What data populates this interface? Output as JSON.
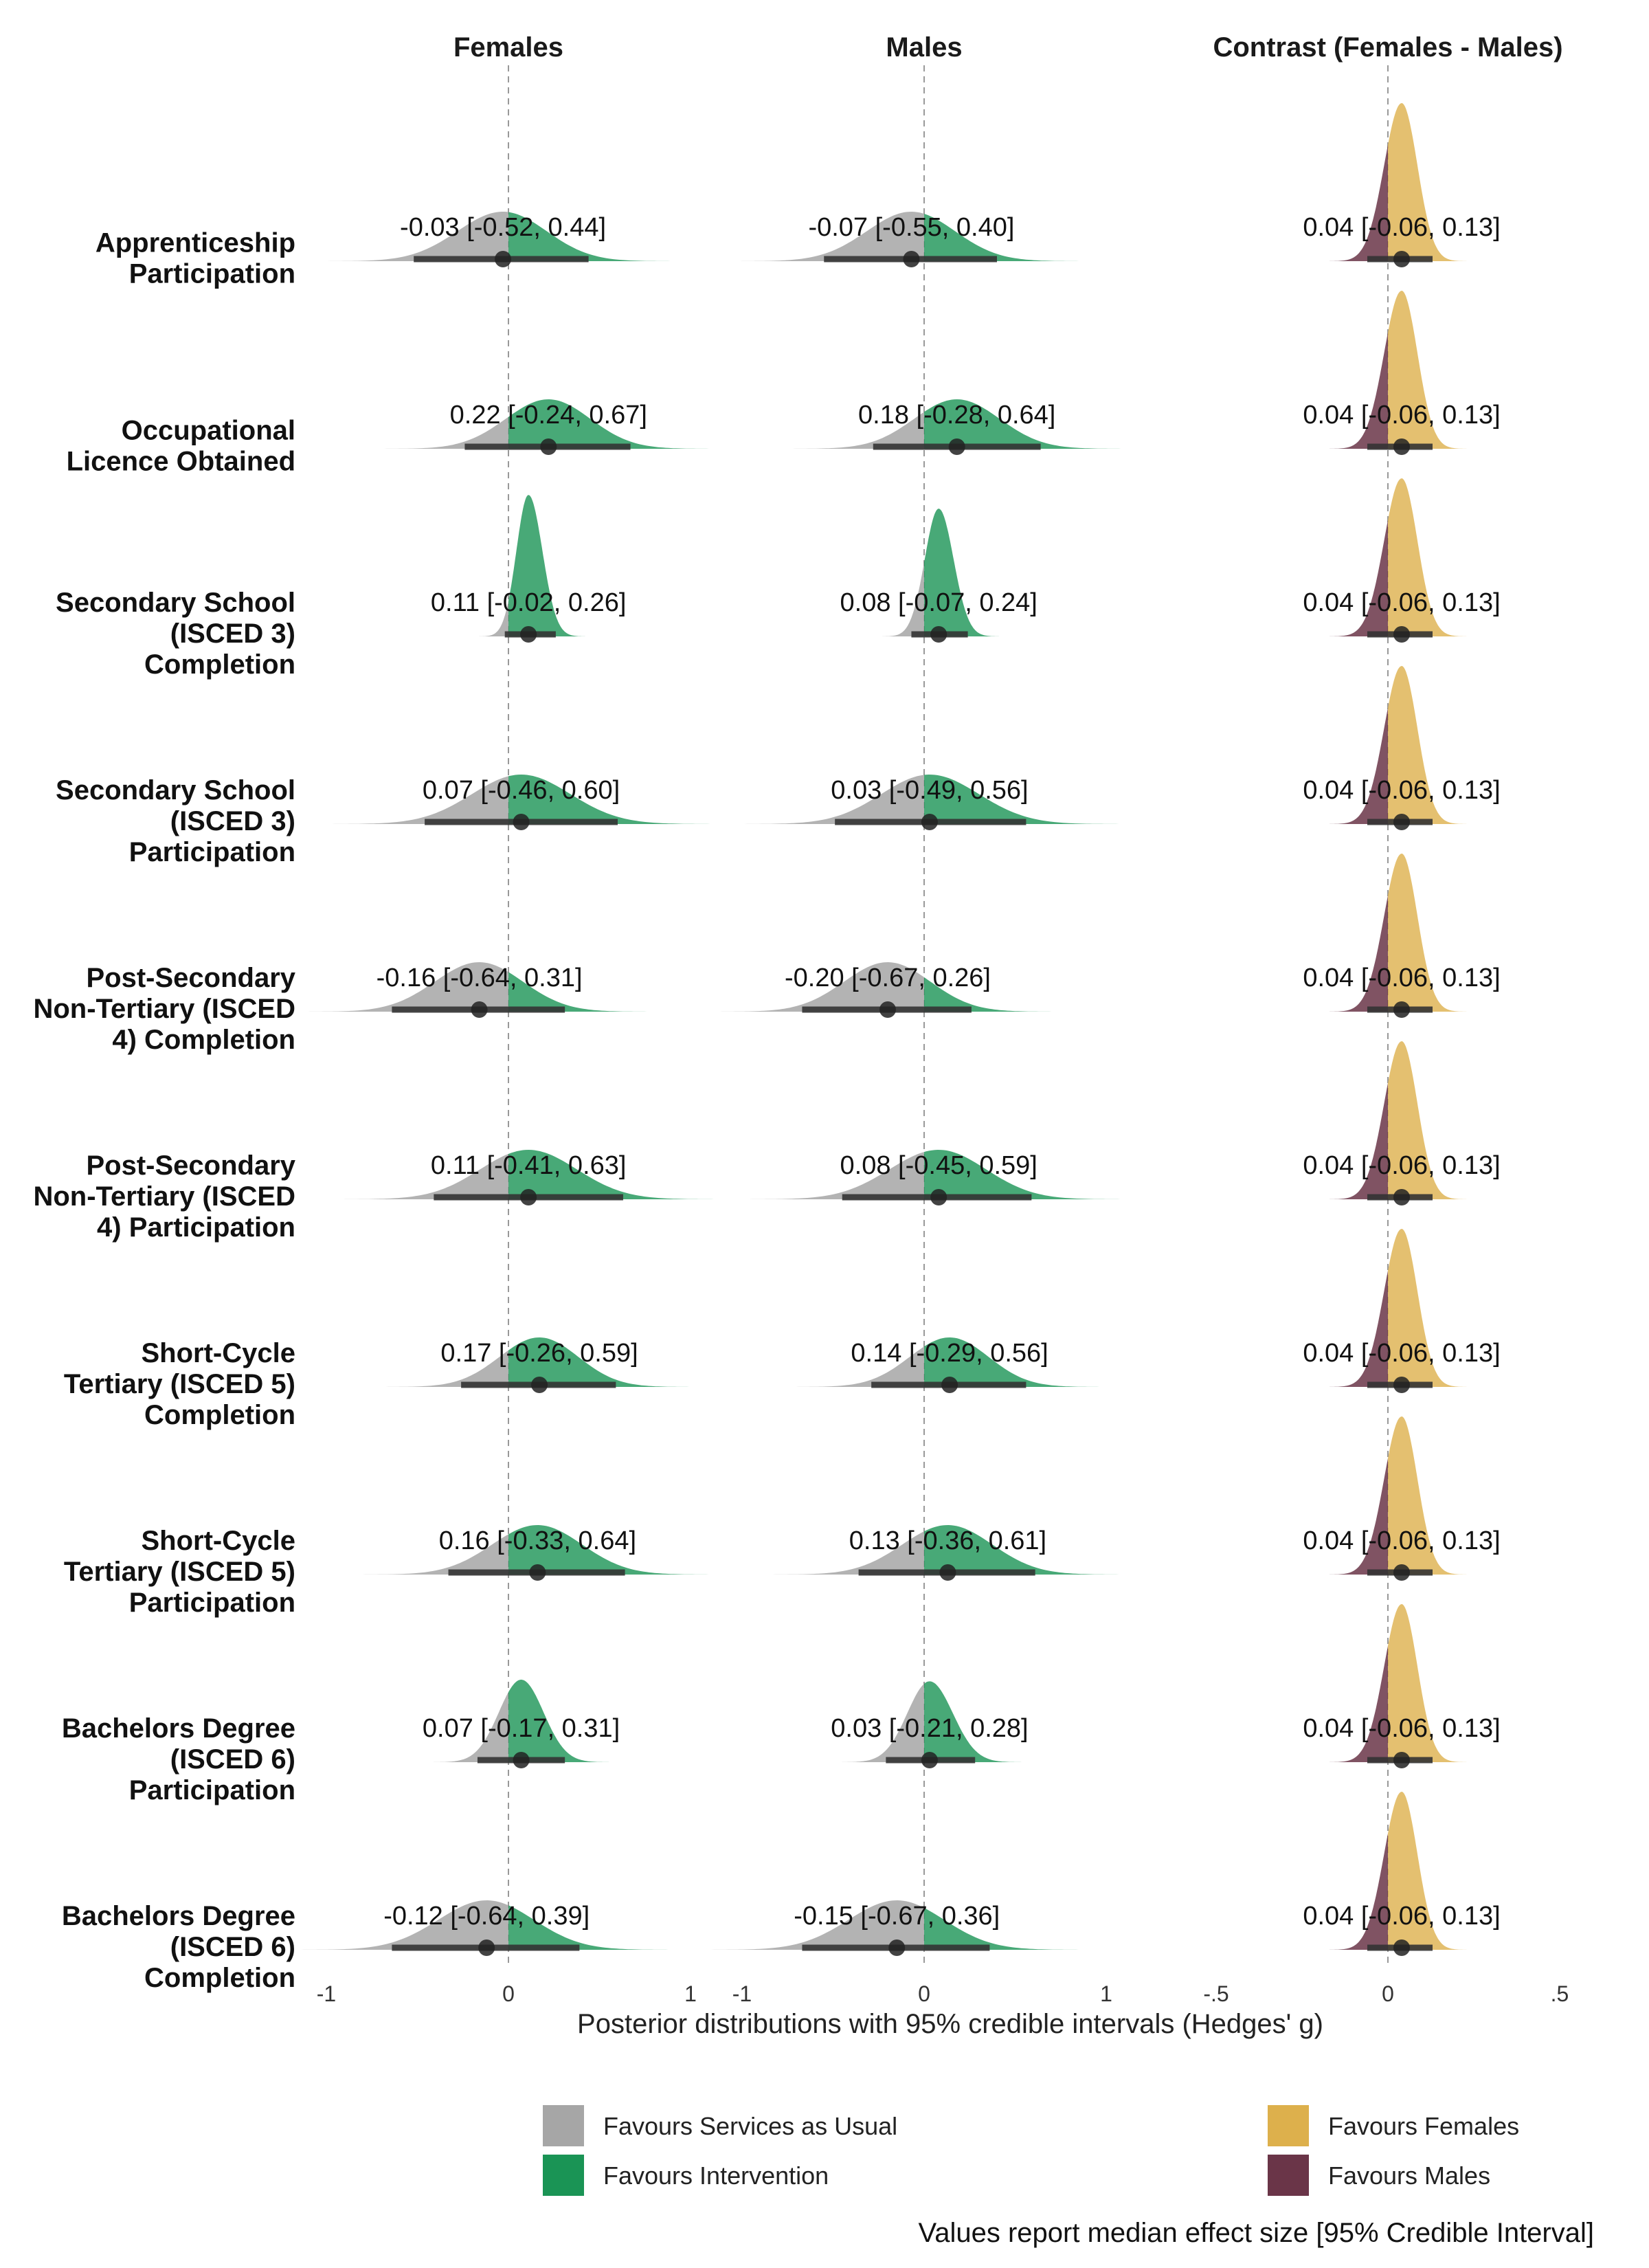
{
  "chart_data": {
    "type": "density-interval",
    "xlabel": "Posterior distributions with 95% credible intervals (Hedges' g)",
    "caption": "Values report median effect size [95% Credible Interval]",
    "panels": [
      {
        "title": "Females",
        "xlim": [
          -1,
          1
        ],
        "ticks": [
          -1,
          0,
          1
        ],
        "tick_labels": [
          "-1",
          "0",
          "1"
        ],
        "left_fill": "services",
        "right_fill": "intervention"
      },
      {
        "title": "Males",
        "xlim": [
          -1,
          1
        ],
        "ticks": [
          -1,
          0,
          1
        ],
        "tick_labels": [
          "-1",
          "0",
          "1"
        ],
        "left_fill": "services",
        "right_fill": "intervention"
      },
      {
        "title": "Contrast (Females - Males)",
        "xlim": [
          -0.5,
          0.5
        ],
        "ticks": [
          -0.5,
          0,
          0.5
        ],
        "tick_labels": [
          "-.5",
          "0",
          ".5"
        ],
        "left_fill": "males",
        "right_fill": "females"
      }
    ],
    "rows": [
      {
        "label": [
          "Apprenticeship",
          "Participation"
        ],
        "females": {
          "median": -0.03,
          "lower": -0.52,
          "upper": 0.44,
          "text": "-0.03 [-0.52, 0.44]"
        },
        "males": {
          "median": -0.07,
          "lower": -0.55,
          "upper": 0.4,
          "text": "-0.07 [-0.55, 0.40]"
        },
        "contrast": {
          "median": 0.04,
          "lower": -0.06,
          "upper": 0.13,
          "text": "0.04 [-0.06, 0.13]"
        }
      },
      {
        "label": [
          "Occupational",
          "Licence Obtained"
        ],
        "females": {
          "median": 0.22,
          "lower": -0.24,
          "upper": 0.67,
          "text": "0.22 [-0.24, 0.67]"
        },
        "males": {
          "median": 0.18,
          "lower": -0.28,
          "upper": 0.64,
          "text": "0.18 [-0.28, 0.64]"
        },
        "contrast": {
          "median": 0.04,
          "lower": -0.06,
          "upper": 0.13,
          "text": "0.04 [-0.06, 0.13]"
        }
      },
      {
        "label": [
          "Secondary School",
          "(ISCED 3)",
          "Completion"
        ],
        "females": {
          "median": 0.11,
          "lower": -0.02,
          "upper": 0.26,
          "text": "0.11 [-0.02, 0.26]"
        },
        "males": {
          "median": 0.08,
          "lower": -0.07,
          "upper": 0.24,
          "text": "0.08 [-0.07, 0.24]"
        },
        "contrast": {
          "median": 0.04,
          "lower": -0.06,
          "upper": 0.13,
          "text": "0.04 [-0.06, 0.13]"
        }
      },
      {
        "label": [
          "Secondary School",
          "(ISCED 3)",
          "Participation"
        ],
        "females": {
          "median": 0.07,
          "lower": -0.46,
          "upper": 0.6,
          "text": "0.07 [-0.46, 0.60]"
        },
        "males": {
          "median": 0.03,
          "lower": -0.49,
          "upper": 0.56,
          "text": "0.03 [-0.49, 0.56]"
        },
        "contrast": {
          "median": 0.04,
          "lower": -0.06,
          "upper": 0.13,
          "text": "0.04 [-0.06, 0.13]"
        }
      },
      {
        "label": [
          "Post-Secondary",
          "Non-Tertiary (ISCED",
          "4) Completion"
        ],
        "females": {
          "median": -0.16,
          "lower": -0.64,
          "upper": 0.31,
          "text": "-0.16 [-0.64, 0.31]"
        },
        "males": {
          "median": -0.2,
          "lower": -0.67,
          "upper": 0.26,
          "text": "-0.20 [-0.67, 0.26]"
        },
        "contrast": {
          "median": 0.04,
          "lower": -0.06,
          "upper": 0.13,
          "text": "0.04 [-0.06, 0.13]"
        }
      },
      {
        "label": [
          "Post-Secondary",
          "Non-Tertiary (ISCED",
          "4) Participation"
        ],
        "females": {
          "median": 0.11,
          "lower": -0.41,
          "upper": 0.63,
          "text": "0.11 [-0.41, 0.63]"
        },
        "males": {
          "median": 0.08,
          "lower": -0.45,
          "upper": 0.59,
          "text": "0.08 [-0.45, 0.59]"
        },
        "contrast": {
          "median": 0.04,
          "lower": -0.06,
          "upper": 0.13,
          "text": "0.04 [-0.06, 0.13]"
        }
      },
      {
        "label": [
          "Short-Cycle",
          "Tertiary (ISCED 5)",
          "Completion"
        ],
        "females": {
          "median": 0.17,
          "lower": -0.26,
          "upper": 0.59,
          "text": "0.17 [-0.26, 0.59]"
        },
        "males": {
          "median": 0.14,
          "lower": -0.29,
          "upper": 0.56,
          "text": "0.14 [-0.29, 0.56]"
        },
        "contrast": {
          "median": 0.04,
          "lower": -0.06,
          "upper": 0.13,
          "text": "0.04 [-0.06, 0.13]"
        }
      },
      {
        "label": [
          "Short-Cycle",
          "Tertiary (ISCED 5)",
          "Participation"
        ],
        "females": {
          "median": 0.16,
          "lower": -0.33,
          "upper": 0.64,
          "text": "0.16 [-0.33, 0.64]"
        },
        "males": {
          "median": 0.13,
          "lower": -0.36,
          "upper": 0.61,
          "text": "0.13 [-0.36, 0.61]"
        },
        "contrast": {
          "median": 0.04,
          "lower": -0.06,
          "upper": 0.13,
          "text": "0.04 [-0.06, 0.13]"
        }
      },
      {
        "label": [
          "Bachelors Degree",
          "(ISCED 6)",
          "Participation"
        ],
        "females": {
          "median": 0.07,
          "lower": -0.17,
          "upper": 0.31,
          "text": "0.07 [-0.17, 0.31]"
        },
        "males": {
          "median": 0.03,
          "lower": -0.21,
          "upper": 0.28,
          "text": "0.03 [-0.21, 0.28]"
        },
        "contrast": {
          "median": 0.04,
          "lower": -0.06,
          "upper": 0.13,
          "text": "0.04 [-0.06, 0.13]"
        }
      },
      {
        "label": [
          "Bachelors Degree",
          "(ISCED 6)",
          "Completion"
        ],
        "females": {
          "median": -0.12,
          "lower": -0.64,
          "upper": 0.39,
          "text": "-0.12 [-0.64, 0.39]"
        },
        "males": {
          "median": -0.15,
          "lower": -0.67,
          "upper": 0.36,
          "text": "-0.15 [-0.67, 0.36]"
        },
        "contrast": {
          "median": 0.04,
          "lower": -0.06,
          "upper": 0.13,
          "text": "0.04 [-0.06, 0.13]"
        }
      }
    ],
    "legend": [
      {
        "key": "services",
        "label": "Favours Services as Usual",
        "color": "#a6a6a6"
      },
      {
        "key": "intervention",
        "label": "Favours Intervention",
        "color": "#1a9455"
      },
      {
        "key": "females",
        "label": "Favours Females",
        "color": "#ddb04c"
      },
      {
        "key": "males",
        "label": "Favours Males",
        "color": "#6a3548"
      }
    ],
    "colors": {
      "point": "#222222",
      "interval": "#333333",
      "zero_line": "#999999"
    }
  }
}
